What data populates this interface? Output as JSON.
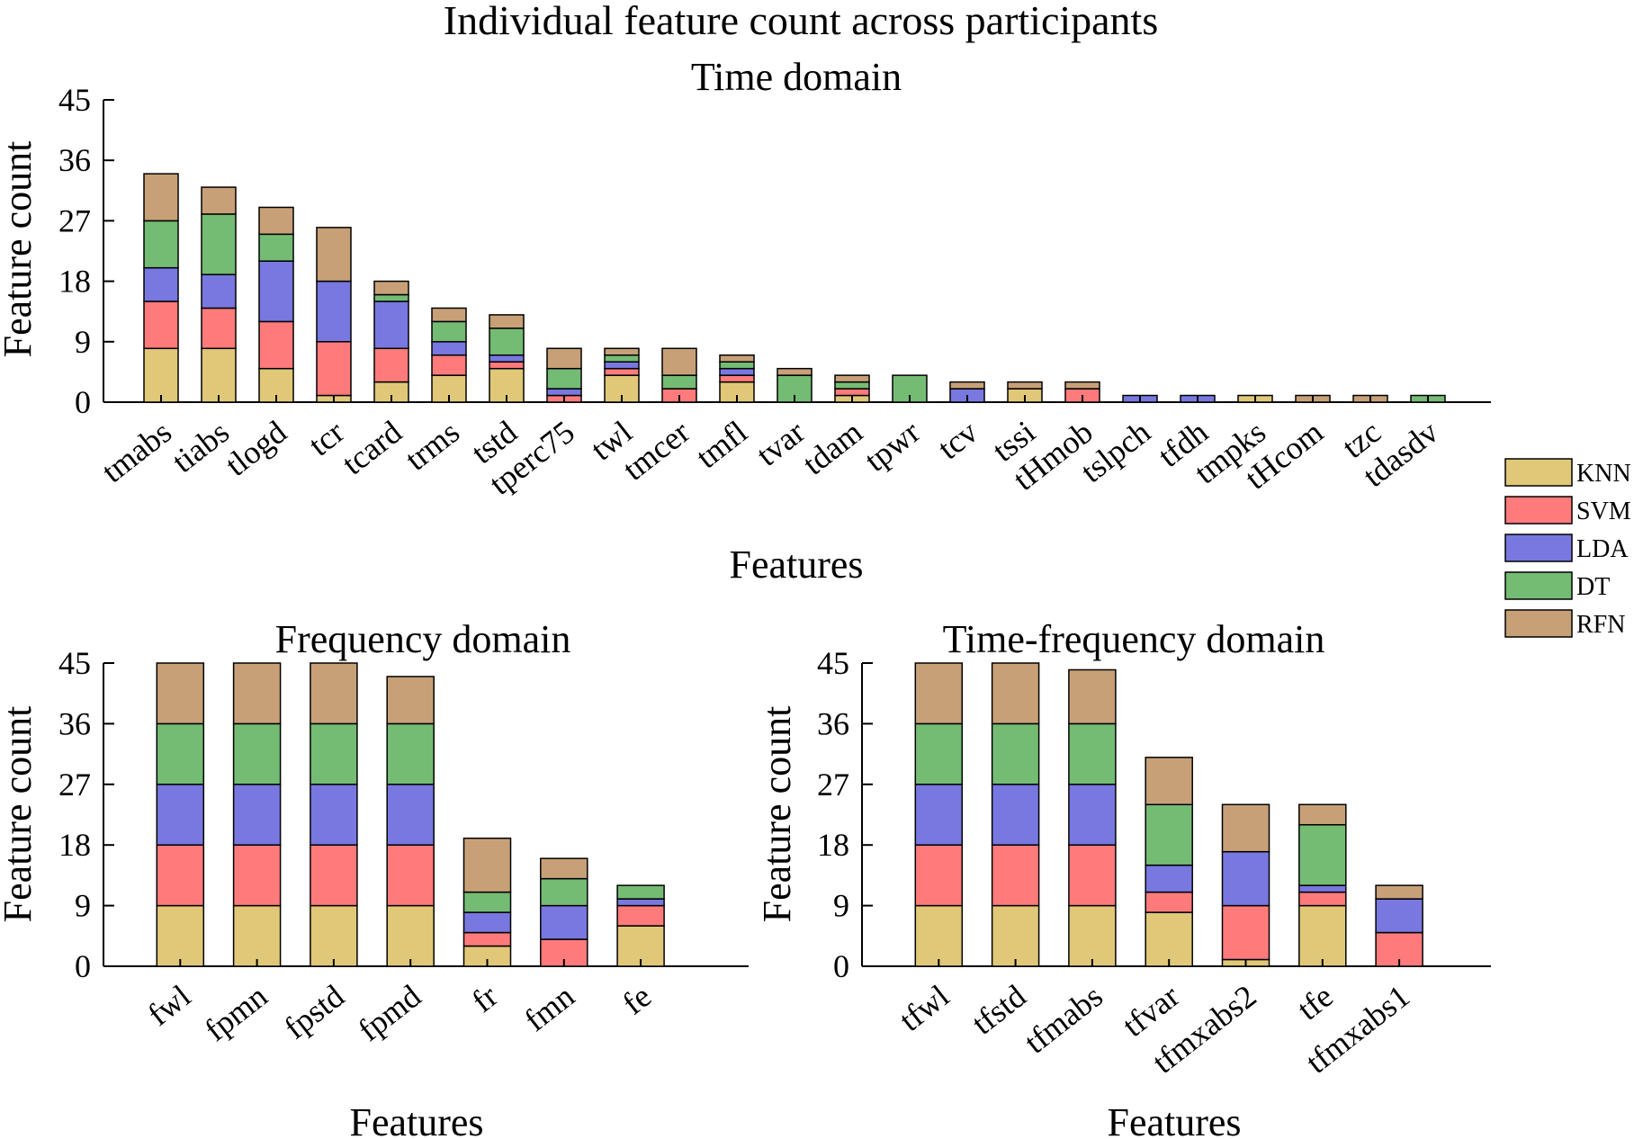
{
  "figure_title": "Individual feature count across participants",
  "legend": [
    {
      "label": "KNN",
      "color": "#E0C878"
    },
    {
      "label": "SVM",
      "color": "#FF7B7B"
    },
    {
      "label": "LDA",
      "color": "#7878E0"
    },
    {
      "label": "DT",
      "color": "#74BC74"
    },
    {
      "label": "RFN",
      "color": "#C8A078"
    }
  ],
  "chart_data": [
    {
      "type": "bar",
      "stacked": true,
      "title": "Time domain",
      "xlabel": "Features",
      "ylabel": "Feature count",
      "ylim": [
        0,
        45
      ],
      "yticks": [
        0,
        9,
        18,
        27,
        36,
        45
      ],
      "categories": [
        "tmabs",
        "tiabs",
        "tlogd",
        "tcr",
        "tcard",
        "trms",
        "tstd",
        "tperc75",
        "twl",
        "tmcer",
        "tmfl",
        "tvar",
        "tdam",
        "tpwr",
        "tcv",
        "tssi",
        "tHmob",
        "tslpch",
        "tfdh",
        "tmpks",
        "tHcom",
        "tzc",
        "tdasdv"
      ],
      "series": [
        {
          "name": "KNN",
          "values": [
            8,
            8,
            5,
            1,
            3,
            4,
            5,
            0,
            4,
            0,
            3,
            0,
            1,
            0,
            0,
            2,
            0,
            0,
            0,
            1,
            0,
            0,
            0
          ]
        },
        {
          "name": "SVM",
          "values": [
            7,
            6,
            7,
            8,
            5,
            3,
            1,
            1,
            1,
            2,
            1,
            0,
            1,
            0,
            0,
            0,
            2,
            0,
            0,
            0,
            0,
            0,
            0
          ]
        },
        {
          "name": "LDA",
          "values": [
            5,
            5,
            9,
            9,
            7,
            2,
            1,
            1,
            1,
            0,
            1,
            0,
            0,
            0,
            2,
            0,
            0,
            1,
            1,
            0,
            0,
            0,
            0
          ]
        },
        {
          "name": "DT",
          "values": [
            7,
            9,
            4,
            0,
            1,
            3,
            4,
            3,
            1,
            2,
            1,
            4,
            1,
            4,
            0,
            0,
            0,
            0,
            0,
            0,
            0,
            0,
            1
          ]
        },
        {
          "name": "RFN",
          "values": [
            7,
            4,
            4,
            8,
            2,
            2,
            2,
            3,
            1,
            4,
            1,
            1,
            1,
            0,
            1,
            1,
            1,
            0,
            0,
            0,
            1,
            1,
            0
          ]
        }
      ]
    },
    {
      "type": "bar",
      "stacked": true,
      "title": "Frequency domain",
      "xlabel": "Features",
      "ylabel": "Feature count",
      "ylim": [
        0,
        45
      ],
      "yticks": [
        0,
        9,
        18,
        27,
        36,
        45
      ],
      "categories": [
        "fwl",
        "fpmn",
        "fpstd",
        "fpmd",
        "fr",
        "fmn",
        "fe"
      ],
      "series": [
        {
          "name": "KNN",
          "values": [
            9,
            9,
            9,
            9,
            3,
            0,
            6
          ]
        },
        {
          "name": "SVM",
          "values": [
            9,
            9,
            9,
            9,
            2,
            4,
            3
          ]
        },
        {
          "name": "LDA",
          "values": [
            9,
            9,
            9,
            9,
            3,
            5,
            1
          ]
        },
        {
          "name": "DT",
          "values": [
            9,
            9,
            9,
            9,
            3,
            4,
            2
          ]
        },
        {
          "name": "RFN",
          "values": [
            9,
            9,
            9,
            7,
            8,
            3,
            0
          ]
        }
      ]
    },
    {
      "type": "bar",
      "stacked": true,
      "title": "Time-frequency domain",
      "xlabel": "Features",
      "ylabel": "Feature count",
      "ylim": [
        0,
        45
      ],
      "yticks": [
        0,
        9,
        18,
        27,
        36,
        45
      ],
      "categories": [
        "tfwl",
        "tfstd",
        "tfmabs",
        "tfvar",
        "tfmxabs2",
        "tfe",
        "tfmxabs1"
      ],
      "series": [
        {
          "name": "KNN",
          "values": [
            9,
            9,
            9,
            8,
            1,
            9,
            0
          ]
        },
        {
          "name": "SVM",
          "values": [
            9,
            9,
            9,
            3,
            8,
            2,
            5
          ]
        },
        {
          "name": "LDA",
          "values": [
            9,
            9,
            9,
            4,
            8,
            1,
            5
          ]
        },
        {
          "name": "DT",
          "values": [
            9,
            9,
            9,
            9,
            0,
            9,
            0
          ]
        },
        {
          "name": "RFN",
          "values": [
            9,
            9,
            8,
            7,
            7,
            3,
            2
          ]
        }
      ]
    }
  ]
}
